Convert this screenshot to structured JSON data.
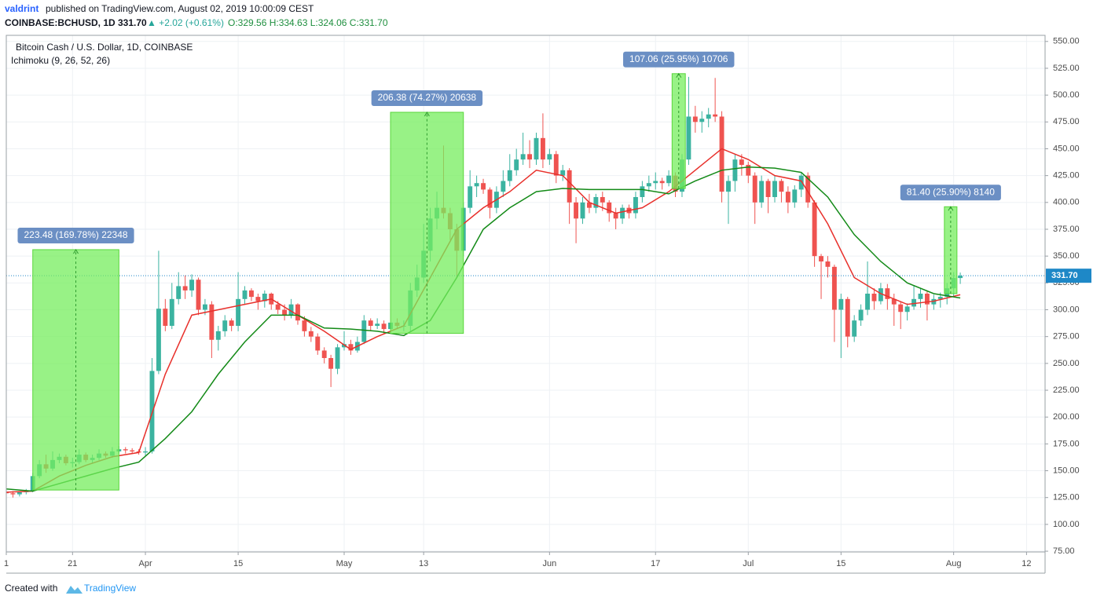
{
  "header": {
    "author": "valdrint",
    "published": "published on TradingView.com, August 02, 2019 10:00:09 CEST",
    "symbol": "COINBASE:BCHUSD, 1D 331.70",
    "change": "▲ +2.02 (+0.61%)",
    "ohlc": "O:329.56 H:334.63 L:324.06 C:331.70"
  },
  "legend": {
    "title": "Bitcoin Cash / U.S. Dollar, 1D, COINBASE",
    "indicator": "Ichimoku (9, 26, 52, 26)"
  },
  "footer": {
    "created": "Created with",
    "brand": "TradingView"
  },
  "chart_data": {
    "type": "candlestick",
    "up_color": "#3bb3a0",
    "down_color": "#ef5350",
    "grid": true,
    "xlim": [
      0,
      156.8
    ],
    "ylim": [
      74.3,
      555.7
    ],
    "xticks": [
      {
        "value": 0,
        "label": "1"
      },
      {
        "value": 10,
        "label": "21"
      },
      {
        "value": 21,
        "label": "Apr"
      },
      {
        "value": 35,
        "label": "15"
      },
      {
        "value": 51,
        "label": "May"
      },
      {
        "value": 63,
        "label": "13"
      },
      {
        "value": 82,
        "label": "Jun"
      },
      {
        "value": 98,
        "label": "17"
      },
      {
        "value": 112,
        "label": "Jul"
      },
      {
        "value": 126,
        "label": "15"
      },
      {
        "value": 143,
        "label": "Aug"
      },
      {
        "value": 154,
        "label": "12"
      }
    ],
    "yticks": [
      {
        "value": 75,
        "label": "75.00"
      },
      {
        "value": 100,
        "label": "100.00"
      },
      {
        "value": 125,
        "label": "125.00"
      },
      {
        "value": 150,
        "label": "150.00"
      },
      {
        "value": 175,
        "label": "175.00"
      },
      {
        "value": 200,
        "label": "200.00"
      },
      {
        "value": 225,
        "label": "225.00"
      },
      {
        "value": 250,
        "label": "250.00"
      },
      {
        "value": 275,
        "label": "275.00"
      },
      {
        "value": 300,
        "label": "300.00"
      },
      {
        "value": 325,
        "label": "325.00"
      },
      {
        "value": 350,
        "label": "350.00"
      },
      {
        "value": 375,
        "label": "375.00"
      },
      {
        "value": 400,
        "label": "400.00"
      },
      {
        "value": 425,
        "label": "425.00"
      },
      {
        "value": 450,
        "label": "450.00"
      },
      {
        "value": 475,
        "label": "475.00"
      },
      {
        "value": 500,
        "label": "500.00"
      },
      {
        "value": 525,
        "label": "525.00"
      },
      {
        "value": 550,
        "label": "550.00"
      }
    ],
    "x": [
      0,
      1,
      2,
      3,
      4,
      5,
      6,
      7,
      8,
      9,
      10,
      11,
      12,
      13,
      14,
      15,
      16,
      17,
      18,
      19,
      20,
      21,
      22,
      23,
      24,
      25,
      26,
      27,
      28,
      29,
      30,
      31,
      32,
      33,
      34,
      35,
      36,
      37,
      38,
      39,
      40,
      41,
      42,
      43,
      44,
      45,
      46,
      47,
      48,
      49,
      50,
      51,
      52,
      53,
      54,
      55,
      56,
      57,
      58,
      59,
      60,
      61,
      62,
      63,
      64,
      65,
      66,
      67,
      68,
      69,
      70,
      71,
      72,
      73,
      74,
      75,
      76,
      77,
      78,
      79,
      80,
      81,
      82,
      83,
      84,
      85,
      86,
      87,
      88,
      89,
      90,
      91,
      92,
      93,
      94,
      95,
      96,
      97,
      98,
      99,
      100,
      101,
      102,
      103,
      104,
      105,
      106,
      107,
      108,
      109,
      110,
      111,
      112,
      113,
      114,
      115,
      116,
      117,
      118,
      119,
      120,
      121,
      122,
      123,
      124,
      125,
      126,
      127,
      128,
      129,
      130,
      131,
      132,
      133,
      134,
      135,
      136,
      137,
      138,
      139,
      140,
      141,
      142,
      143,
      144
    ],
    "open": [
      130,
      129,
      128,
      130,
      131,
      145,
      156,
      152,
      160,
      163,
      157,
      158,
      165,
      160,
      162,
      166,
      164,
      168,
      170,
      169,
      168,
      167,
      168,
      243,
      301,
      285,
      310,
      322,
      318,
      328,
      300,
      305,
      272,
      280,
      290,
      285,
      310,
      318,
      312,
      308,
      315,
      305,
      300,
      295,
      305,
      290,
      280,
      275,
      262,
      255,
      245,
      265,
      268,
      262,
      270,
      290,
      285,
      287,
      282,
      288,
      285,
      285,
      318,
      330,
      355,
      385,
      395,
      390,
      375,
      355,
      395,
      415,
      418,
      412,
      395,
      410,
      420,
      430,
      440,
      445,
      440,
      460,
      440,
      445,
      425,
      430,
      400,
      385,
      400,
      395,
      405,
      400,
      390,
      385,
      395,
      390,
      405,
      415,
      418,
      420,
      418,
      425,
      410,
      440,
      480,
      475,
      478,
      482,
      480,
      410,
      420,
      440,
      435,
      425,
      400,
      420,
      405,
      420,
      410,
      400,
      412,
      425,
      400,
      350,
      345,
      340,
      300,
      310,
      275,
      290,
      300,
      315,
      308,
      320,
      310,
      305,
      298,
      303,
      310,
      315,
      305,
      310,
      312,
      320,
      329.56
    ],
    "high": [
      132,
      131,
      131,
      133,
      148,
      160,
      165,
      168,
      166,
      165,
      162,
      170,
      167,
      165,
      170,
      168,
      172,
      173,
      172,
      171,
      170,
      172,
      255,
      355,
      310,
      325,
      335,
      332,
      333,
      330,
      310,
      308,
      285,
      295,
      292,
      335,
      322,
      320,
      315,
      318,
      316,
      308,
      305,
      310,
      306,
      294,
      284,
      278,
      265,
      258,
      268,
      280,
      272,
      275,
      295,
      292,
      292,
      290,
      292,
      292,
      290,
      325,
      342,
      380,
      395,
      410,
      453,
      395,
      380,
      400,
      430,
      425,
      422,
      414,
      415,
      430,
      445,
      450,
      465,
      458,
      465,
      483,
      450,
      448,
      435,
      432,
      405,
      405,
      408,
      408,
      410,
      402,
      395,
      398,
      398,
      410,
      420,
      425,
      428,
      423,
      430,
      428,
      445,
      517,
      490,
      485,
      488,
      516,
      485,
      425,
      445,
      445,
      438,
      428,
      425,
      422,
      425,
      422,
      415,
      416,
      428,
      428,
      402,
      352,
      350,
      342,
      315,
      312,
      295,
      305,
      345,
      320,
      325,
      324,
      315,
      308,
      306,
      322,
      320,
      318,
      314,
      316,
      325,
      335,
      334.63
    ],
    "low": [
      126,
      125,
      126,
      128,
      130,
      143,
      148,
      150,
      157,
      155,
      153,
      156,
      158,
      157,
      160,
      162,
      162,
      166,
      166,
      166,
      165,
      164,
      166,
      240,
      280,
      282,
      305,
      310,
      312,
      295,
      295,
      255,
      262,
      275,
      280,
      280,
      305,
      308,
      300,
      302,
      300,
      296,
      290,
      292,
      286,
      275,
      270,
      258,
      250,
      228,
      240,
      262,
      258,
      260,
      268,
      280,
      282,
      278,
      280,
      282,
      280,
      280,
      312,
      325,
      345,
      375,
      385,
      365,
      330,
      350,
      390,
      405,
      408,
      385,
      390,
      405,
      415,
      425,
      435,
      432,
      435,
      432,
      435,
      418,
      420,
      380,
      362,
      380,
      390,
      390,
      392,
      382,
      375,
      380,
      385,
      385,
      400,
      410,
      412,
      412,
      415,
      405,
      405,
      435,
      465,
      465,
      470,
      475,
      400,
      380,
      410,
      425,
      418,
      380,
      395,
      390,
      400,
      400,
      390,
      395,
      405,
      395,
      340,
      310,
      330,
      270,
      255,
      265,
      270,
      285,
      295,
      300,
      305,
      300,
      285,
      282,
      290,
      300,
      302,
      290,
      300,
      302,
      305,
      312,
      324.06
    ],
    "close": [
      129,
      128,
      130,
      131,
      145,
      156,
      152,
      160,
      163,
      157,
      158,
      165,
      160,
      162,
      166,
      164,
      168,
      170,
      169,
      168,
      167,
      168,
      243,
      301,
      285,
      310,
      322,
      318,
      328,
      300,
      305,
      272,
      280,
      290,
      285,
      310,
      318,
      312,
      308,
      315,
      305,
      300,
      295,
      305,
      290,
      280,
      275,
      262,
      255,
      245,
      265,
      268,
      262,
      270,
      290,
      285,
      287,
      282,
      288,
      285,
      285,
      318,
      330,
      355,
      385,
      395,
      390,
      375,
      355,
      395,
      415,
      418,
      412,
      395,
      410,
      420,
      430,
      440,
      445,
      440,
      460,
      440,
      445,
      425,
      430,
      400,
      385,
      400,
      395,
      405,
      400,
      390,
      385,
      395,
      390,
      405,
      415,
      418,
      420,
      418,
      425,
      410,
      440,
      480,
      475,
      478,
      482,
      480,
      410,
      420,
      440,
      435,
      425,
      400,
      420,
      405,
      420,
      410,
      400,
      412,
      425,
      400,
      350,
      345,
      340,
      300,
      310,
      275,
      290,
      300,
      315,
      308,
      320,
      310,
      305,
      298,
      303,
      310,
      315,
      305,
      310,
      312,
      320,
      329.56,
      331.7
    ],
    "last_price_label": "331.70",
    "last_price_color": "#1e88c7",
    "lines": [
      {
        "color": "#e8302b",
        "x": [
          0,
          4,
          8,
          12,
          16,
          20,
          24,
          28,
          32,
          36,
          40,
          44,
          48,
          52,
          56,
          60,
          64,
          68,
          72,
          76,
          80,
          84,
          88,
          92,
          96,
          100,
          104,
          108,
          112,
          116,
          120,
          124,
          128,
          132,
          136,
          140,
          144
        ],
        "values": [
          130,
          131,
          145,
          155,
          163,
          167,
          240,
          295,
          300,
          305,
          310,
          295,
          280,
          263,
          275,
          285,
          330,
          375,
          395,
          410,
          430,
          425,
          400,
          390,
          395,
          410,
          430,
          450,
          440,
          425,
          420,
          380,
          330,
          315,
          305,
          308,
          314
        ]
      },
      {
        "color": "#138a17",
        "x": [
          0,
          4,
          8,
          12,
          16,
          20,
          24,
          28,
          32,
          36,
          40,
          44,
          48,
          52,
          56,
          60,
          64,
          68,
          72,
          76,
          80,
          84,
          88,
          92,
          96,
          100,
          104,
          108,
          112,
          116,
          120,
          124,
          128,
          132,
          136,
          140,
          144
        ],
        "values": [
          133,
          131,
          138,
          145,
          152,
          158,
          180,
          205,
          240,
          270,
          295,
          295,
          283,
          282,
          280,
          276,
          290,
          330,
          375,
          395,
          410,
          413,
          412,
          412,
          412,
          408,
          420,
          430,
          433,
          432,
          428,
          405,
          370,
          345,
          325,
          315,
          311
        ]
      }
    ],
    "measurements": [
      {
        "x": [
          4,
          17
        ],
        "y": [
          132,
          356
        ],
        "label": "223.48 (169.78%) 22348"
      },
      {
        "x": [
          58,
          69
        ],
        "y": [
          278,
          484
        ],
        "label": "206.38 (74.27%) 20638"
      },
      {
        "x": [
          100.5,
          102.5
        ],
        "y": [
          413,
          520
        ],
        "label": "107.06 (25.95%) 10706"
      },
      {
        "x": [
          141.6,
          143.5
        ],
        "y": [
          315,
          396
        ],
        "label": "81.40 (25.90%) 8140"
      }
    ]
  }
}
